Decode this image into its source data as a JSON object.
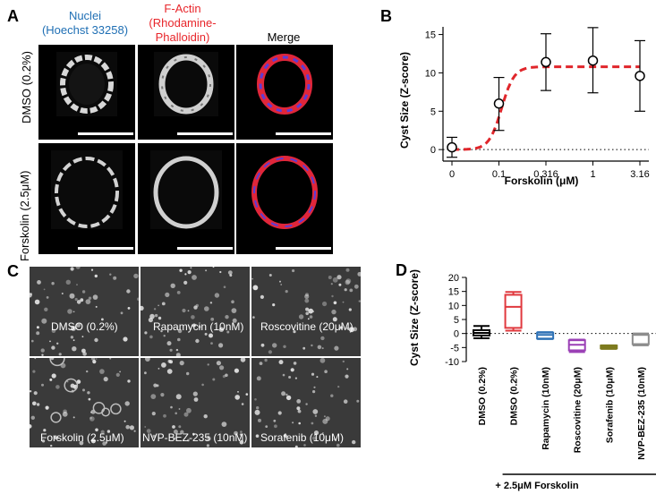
{
  "panel_a": {
    "label": "A",
    "col_headers": [
      {
        "line1": "Nuclei",
        "line2": "(Hoechst 33258)",
        "color": "#1f6fb4"
      },
      {
        "line1": "F-Actin",
        "line2": "(Rhodamine-",
        "line3": "Phalloidin)",
        "color": "#e8262b"
      },
      {
        "line1": "Merge",
        "color": "#000000"
      }
    ],
    "row_labels": [
      "DMSO (0.2%)",
      "Forskolin (2.5μM)"
    ]
  },
  "panel_b": {
    "label": "B",
    "chart_data": {
      "type": "scatter",
      "x_categories": [
        "0",
        "0.1",
        "0.316",
        "1",
        "3.16"
      ],
      "points": [
        {
          "x": "0",
          "y": 0.3,
          "err_low": -1.0,
          "err_high": 1.6
        },
        {
          "x": "0.1",
          "y": 6.0,
          "err_low": 2.5,
          "err_high": 9.4
        },
        {
          "x": "0.316",
          "y": 11.4,
          "err_low": 7.7,
          "err_high": 15.1
        },
        {
          "x": "1",
          "y": 11.6,
          "err_low": 7.4,
          "err_high": 15.9
        },
        {
          "x": "3.16",
          "y": 9.6,
          "err_low": 5.0,
          "err_high": 14.2
        }
      ],
      "fit_plateau": 10.8,
      "ylim": [
        -1.5,
        16
      ],
      "yticks": [
        0,
        5,
        10,
        15
      ],
      "xlabel": "Forskolin (μM)",
      "ylabel": "Cyst Size (Z-score)",
      "fit_color": "#e0262b"
    }
  },
  "panel_c": {
    "label": "C",
    "tiles": [
      "DMSO (0.2%)",
      "Rapamycin (10nM)",
      "Roscovitine (20μM)",
      "Forskolin (2.5μM)",
      "NVP-BEZ-235 (10nM)",
      "Sorafenib (10μM)"
    ]
  },
  "panel_d": {
    "label": "D",
    "chart_data": {
      "type": "box",
      "categories": [
        "DMSO (0.2%)",
        "DMSO (0.2%)",
        "Rapamycin (10nM)",
        "Roscovitine (20μM)",
        "Sorafenib (10μM)",
        "NVP-BEZ-235 (10nM)"
      ],
      "boxes": [
        {
          "min": -1.7,
          "q1": -0.7,
          "median": 0.2,
          "q3": 1.2,
          "max": 2.7,
          "color": "#000000"
        },
        {
          "min": 1.0,
          "q1": 2.0,
          "median": 9.5,
          "q3": 13.8,
          "max": 14.8,
          "color": "#e0393e"
        },
        {
          "min": -2.0,
          "q1": -1.8,
          "median": -0.5,
          "q3": 0.3,
          "max": 0.5,
          "color": "#2f72b6"
        },
        {
          "min": -6.6,
          "q1": -6.0,
          "median": -4.0,
          "q3": -2.4,
          "max": -2.2,
          "color": "#9a3fb5"
        },
        {
          "min": -5.5,
          "q1": -5.3,
          "median": -4.8,
          "q3": -4.3,
          "max": -4.2,
          "color": "#7d7a1e"
        },
        {
          "min": -4.2,
          "q1": -3.8,
          "median": -3.8,
          "q3": -0.5,
          "max": 0.0,
          "color": "#8c8c8c"
        }
      ],
      "ylim": [
        -10,
        20
      ],
      "yticks": [
        -10,
        -5,
        0,
        5,
        10,
        15,
        20
      ],
      "ylabel": "Cyst Size (Z-score)",
      "group_label": "+ 2.5μM Forskolin"
    }
  }
}
